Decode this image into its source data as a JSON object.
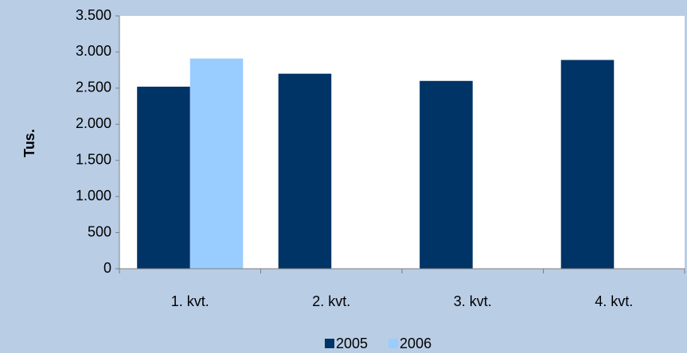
{
  "chart_data": {
    "type": "bar",
    "y_label": "Tus.",
    "categories": [
      "1. kvt.",
      "2. kvt.",
      "3. kvt.",
      "4. kvt."
    ],
    "series": [
      {
        "name": "2005",
        "color": "#003366",
        "values": [
          2520,
          2700,
          2600,
          2890
        ]
      },
      {
        "name": "2006",
        "color": "#99ccff",
        "values": [
          2910,
          null,
          null,
          null
        ]
      }
    ],
    "ylim": [
      0,
      3500
    ],
    "yticks": [
      0,
      500,
      {
        "value": 1000,
        "label": "1.000"
      },
      {
        "value": 1500,
        "label": "1.500"
      },
      {
        "value": 2000,
        "label": "2.000"
      },
      {
        "value": 2500,
        "label": "2.500"
      },
      {
        "value": 3000,
        "label": "3.000"
      },
      {
        "value": 3500,
        "label": "3.500"
      }
    ],
    "legend": "bottom",
    "grid": false
  }
}
